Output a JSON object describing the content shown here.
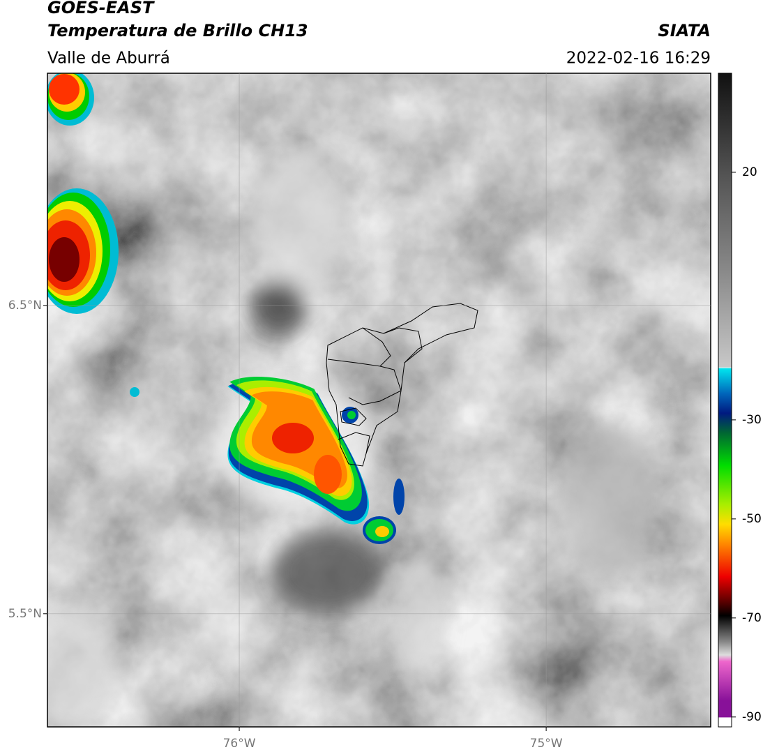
{
  "header": {
    "title": "GOES-EAST",
    "subtitle": "Temperatura de Brillo CH13",
    "region": "Valle de Aburrá",
    "source": "SIATA",
    "datetime": "2022-02-16 16:29"
  },
  "map": {
    "xlim": [
      -76.625,
      -74.464
    ],
    "ylim": [
      5.133,
      7.253
    ],
    "xticks": [
      {
        "value": -76,
        "label": "76°W"
      },
      {
        "value": -75,
        "label": "75°W"
      }
    ],
    "yticks": [
      {
        "value": 6.5,
        "label": "6.5°N"
      },
      {
        "value": 5.5,
        "label": "5.5°N"
      }
    ],
    "grid": true
  },
  "colorbar": {
    "lim": [
      -92,
      40
    ],
    "ticks": [
      20,
      -30,
      -50,
      -70,
      -90
    ]
  }
}
